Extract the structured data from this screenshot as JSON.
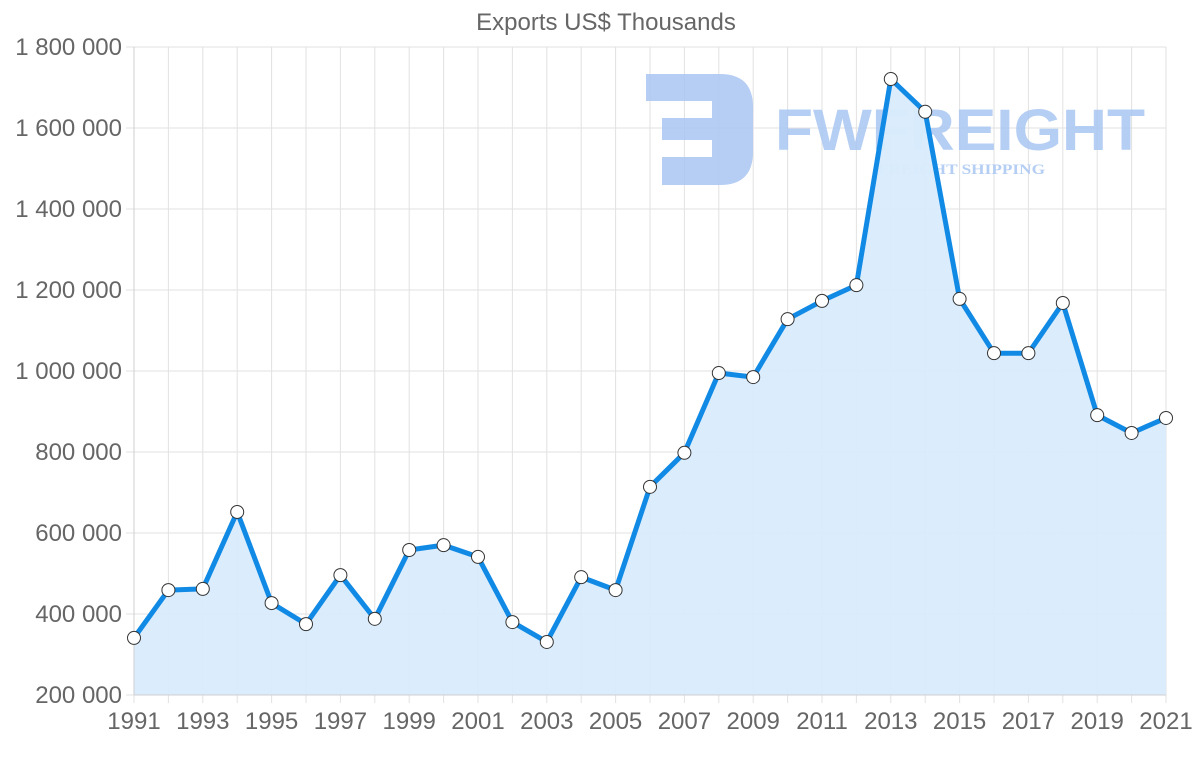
{
  "chart_data": {
    "type": "area",
    "title": "Exports US$ Thousands",
    "xlabel": "",
    "ylabel": "",
    "x": [
      1991,
      1992,
      1993,
      1994,
      1995,
      1996,
      1997,
      1998,
      1999,
      2000,
      2001,
      2002,
      2003,
      2004,
      2005,
      2006,
      2007,
      2008,
      2009,
      2010,
      2011,
      2012,
      2013,
      2014,
      2015,
      2016,
      2017,
      2018,
      2019,
      2020,
      2021
    ],
    "series": [
      {
        "name": "Exports US$ Thousands",
        "values": [
          341000,
          459000,
          462000,
          652000,
          427000,
          375000,
          496000,
          388000,
          558000,
          570000,
          541000,
          380000,
          331000,
          491000,
          459000,
          714000,
          798000,
          995000,
          985000,
          1128000,
          1173000,
          1212000,
          1721000,
          1640000,
          1178000,
          1044000,
          1044000,
          1168000,
          891000,
          847000,
          884000
        ]
      }
    ],
    "ylim": [
      200000,
      1800000
    ],
    "y_ticks": [
      200000,
      400000,
      600000,
      800000,
      1000000,
      1200000,
      1400000,
      1600000,
      1800000
    ],
    "y_tick_labels": [
      "200 000",
      "400 000",
      "600 000",
      "800 000",
      "1 000 000",
      "1 200 000",
      "1 400 000",
      "1 600 000",
      "1 800 000"
    ],
    "x_tick_labels": [
      "1991",
      "1993",
      "1995",
      "1997",
      "1999",
      "2001",
      "2003",
      "2005",
      "2007",
      "2009",
      "2011",
      "2013",
      "2015",
      "2017",
      "2019",
      "2021"
    ],
    "grid": true,
    "legend": "none",
    "colors": {
      "line": "#118ae6",
      "fill": "#d9ecfc",
      "grid": "#e2e2e2",
      "tick_text": "#666666",
      "point_fill": "#ffffff",
      "point_stroke": "#333333"
    }
  },
  "watermark": {
    "brand": "FWFREIGHT",
    "tagline": "FREIGHT SHIPPING",
    "color": "#a9c6f2"
  }
}
